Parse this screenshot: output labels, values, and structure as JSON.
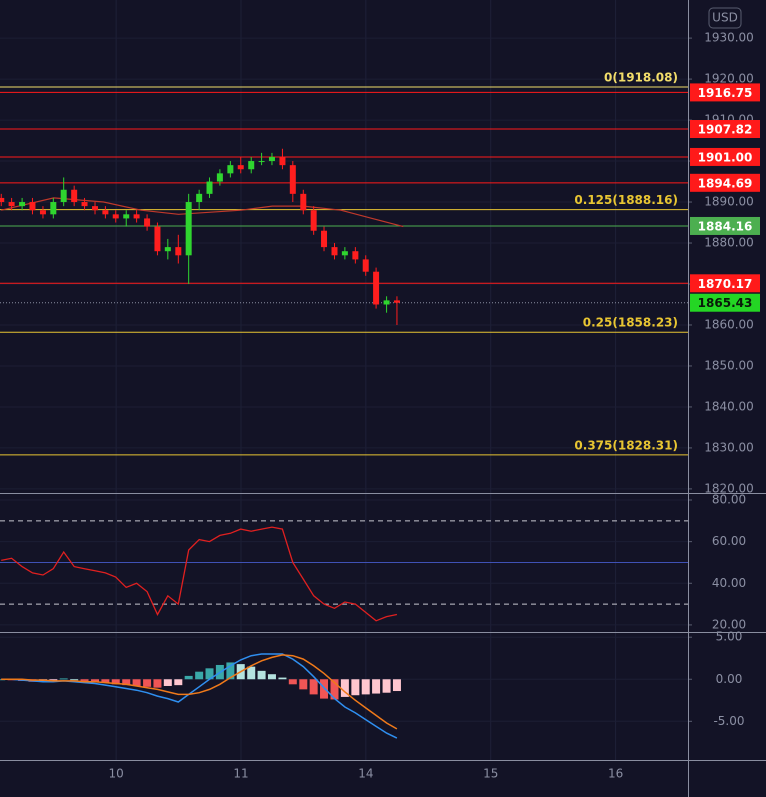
{
  "chart_data": [
    {
      "type": "candlestick",
      "currency": "USD",
      "ylim": [
        1819,
        1939.3
      ],
      "yticks": [
        {
          "value": 1930,
          "label": "1930.00"
        },
        {
          "value": 1920,
          "label": "1920.00"
        },
        {
          "value": 1910,
          "label": "1910.00"
        },
        {
          "value": 1900,
          "label": "1900.00"
        },
        {
          "value": 1890,
          "label": "1890.00"
        },
        {
          "value": 1880,
          "label": "1880.00"
        },
        {
          "value": 1870,
          "label": "1870.00"
        },
        {
          "value": 1860,
          "label": "1860.00"
        },
        {
          "value": 1850,
          "label": "1850.00"
        },
        {
          "value": 1840,
          "label": "1840.00"
        },
        {
          "value": 1830,
          "label": "1830.00"
        },
        {
          "value": 1820,
          "label": "1820.00"
        }
      ],
      "up_color": "#2fd52f",
      "down_color": "#ff1e1e",
      "x": [
        0.08,
        0.163,
        0.247,
        0.33,
        0.414,
        0.497,
        0.58,
        0.664,
        0.747,
        0.831,
        0.914,
        0.997,
        1.081,
        1.164,
        1.248,
        1.331,
        1.414,
        1.498,
        1.581,
        1.665,
        1.748,
        1.831,
        1.915,
        1.998,
        2.082,
        2.165,
        2.248,
        2.332,
        2.415,
        2.499,
        2.582,
        2.665,
        2.749,
        2.832,
        2.916,
        2.999,
        3.082,
        3.166,
        3.249
      ],
      "open": [
        1891,
        1890,
        1889,
        1890,
        1888,
        1887,
        1890,
        1893,
        1890,
        1889,
        1888,
        1887,
        1886,
        1887,
        1886,
        1884,
        1878,
        1879,
        1877,
        1890,
        1892,
        1895,
        1897,
        1899,
        1898,
        1900,
        1900,
        1901,
        1899,
        1892,
        1888,
        1883,
        1879,
        1877,
        1878,
        1876,
        1873,
        1865,
        1866
      ],
      "high": [
        1892,
        1891,
        1891,
        1891,
        1889,
        1891,
        1896,
        1894,
        1891,
        1890,
        1889,
        1888,
        1888,
        1888,
        1887,
        1885,
        1881,
        1882,
        1892,
        1893,
        1896,
        1898,
        1900,
        1901,
        1901,
        1902,
        1902,
        1903,
        1900,
        1893,
        1889,
        1884,
        1880,
        1879,
        1879,
        1877,
        1874,
        1867,
        1867
      ],
      "low": [
        1889,
        1888,
        1888,
        1887,
        1886,
        1886,
        1889,
        1889,
        1888,
        1887,
        1886,
        1885,
        1884,
        1885,
        1883,
        1877,
        1876,
        1875,
        1870,
        1888,
        1891,
        1894,
        1896,
        1897,
        1897,
        1899,
        1899,
        1898,
        1890,
        1887,
        1882,
        1878,
        1876,
        1876,
        1875,
        1872,
        1864,
        1863,
        1860
      ],
      "close": [
        1890,
        1889,
        1890,
        1888,
        1887,
        1890,
        1893,
        1890,
        1889,
        1888,
        1887,
        1886,
        1887,
        1886,
        1884,
        1878,
        1879,
        1877,
        1890,
        1892,
        1895,
        1897,
        1899,
        1898,
        1900,
        1900,
        1901,
        1899,
        1892,
        1888,
        1883,
        1879,
        1877,
        1878,
        1876,
        1873,
        1865,
        1866,
        1865.43
      ],
      "ma": {
        "color": "#c0392b",
        "x": [
          0.08,
          0.5,
          0.9,
          1.2,
          1.5,
          2.0,
          2.25,
          2.5,
          2.8,
          3.05,
          3.3
        ],
        "values": [
          1888,
          1891,
          1890,
          1888,
          1887,
          1888,
          1889,
          1889,
          1888,
          1886,
          1884
        ]
      },
      "levels": [
        {
          "value": 1918.08,
          "label": "0(1918.08)",
          "color": "#f2dd6a"
        },
        {
          "value": 1888.16,
          "label": "0.125(1888.16)",
          "color": "#e8c532"
        },
        {
          "value": 1858.23,
          "label": "0.25(1858.23)",
          "color": "#e8c532"
        },
        {
          "value": 1828.31,
          "label": "0.375(1828.31)",
          "color": "#e8c532"
        }
      ],
      "price_lines": [
        {
          "value": 1916.75,
          "label": "1916.75",
          "color": "#ff1a1a"
        },
        {
          "value": 1907.82,
          "label": "1907.82",
          "color": "#ff1a1a"
        },
        {
          "value": 1901.0,
          "label": "1901.00",
          "color": "#ff1a1a"
        },
        {
          "value": 1894.69,
          "label": "1894.69",
          "color": "#ff1a1a"
        },
        {
          "value": 1884.16,
          "label": "1884.16",
          "color": "#4caf50"
        },
        {
          "value": 1870.17,
          "label": "1870.17",
          "color": "#ff1a1a"
        }
      ],
      "last_price": {
        "value": 1865.43,
        "label": "1865.43",
        "color": "#24d624"
      }
    },
    {
      "type": "line",
      "color": "#e02020",
      "ylim": [
        16.6,
        82.4
      ],
      "yticks": [
        {
          "value": 80,
          "label": "80.00"
        },
        {
          "value": 60,
          "label": "60.00"
        },
        {
          "value": 40,
          "label": "40.00"
        },
        {
          "value": 20,
          "label": "20.00"
        }
      ],
      "bands": [
        70,
        30
      ],
      "midline": 50,
      "midline_color": "#3f51b5",
      "values": [
        51,
        52,
        48,
        45,
        44,
        47,
        55,
        48,
        47,
        46,
        45,
        43,
        38,
        40,
        36,
        25,
        34,
        30,
        56,
        61,
        60,
        63,
        64,
        66,
        65,
        66,
        67,
        66,
        50,
        42,
        34,
        30,
        28,
        31,
        30,
        26,
        22,
        24,
        25
      ]
    },
    {
      "type": "macd",
      "ylim": [
        -9.6,
        5.5
      ],
      "yticks": [
        {
          "value": 5,
          "label": "5.00"
        },
        {
          "value": 0,
          "label": "0.00"
        },
        {
          "value": -5,
          "label": "-5.00"
        }
      ],
      "xlim": [
        0.07,
        5.58
      ],
      "xticks": [
        {
          "value": 1,
          "label": "10"
        },
        {
          "value": 2,
          "label": "11"
        },
        {
          "value": 3,
          "label": "14"
        },
        {
          "value": 4,
          "label": "15"
        },
        {
          "value": 5,
          "label": "16"
        }
      ],
      "histogram": [
        0,
        -0.1,
        -0.2,
        -0.3,
        -0.3,
        -0.2,
        0.1,
        0,
        -0.2,
        -0.3,
        -0.4,
        -0.6,
        -0.7,
        -0.8,
        -0.9,
        -1.0,
        -0.8,
        -0.7,
        0.4,
        0.9,
        1.3,
        1.7,
        2.0,
        1.8,
        1.5,
        1.0,
        0.6,
        0.2,
        -0.6,
        -1.2,
        -1.8,
        -2.3,
        -2.4,
        -2.1,
        -1.9,
        -1.8,
        -1.7,
        -1.6,
        -1.4
      ],
      "hist_colors": [
        "#3aa8a8",
        "#b4e2df",
        "#ffc6cf",
        "#f05555"
      ],
      "series": [
        {
          "color": "#2f8ff0",
          "values": [
            0,
            0,
            -0.1,
            -0.2,
            -0.3,
            -0.3,
            -0.2,
            -0.3,
            -0.4,
            -0.5,
            -0.7,
            -0.9,
            -1.1,
            -1.3,
            -1.6,
            -2.0,
            -2.3,
            -2.7,
            -1.8,
            -0.9,
            0,
            0.8,
            1.6,
            2.3,
            2.8,
            3.0,
            3.0,
            3.0,
            2.4,
            1.5,
            0.3,
            -1.0,
            -2.3,
            -3.3,
            -4.0,
            -4.8,
            -5.6,
            -6.4,
            -7.0
          ]
        },
        {
          "color": "#f07a1a",
          "values": [
            0,
            0,
            0,
            -0.1,
            -0.1,
            -0.2,
            -0.2,
            -0.2,
            -0.3,
            -0.3,
            -0.4,
            -0.5,
            -0.6,
            -0.8,
            -1.0,
            -1.2,
            -1.5,
            -1.8,
            -1.8,
            -1.6,
            -1.2,
            -0.6,
            0.2,
            0.9,
            1.6,
            2.2,
            2.6,
            2.9,
            2.8,
            2.4,
            1.6,
            0.7,
            -0.4,
            -1.5,
            -2.5,
            -3.4,
            -4.3,
            -5.2,
            -5.9
          ]
        }
      ]
    }
  ]
}
